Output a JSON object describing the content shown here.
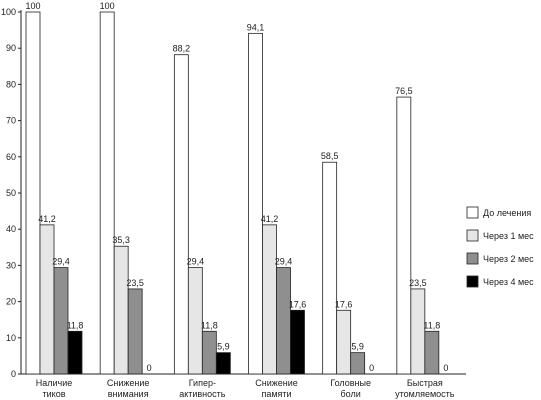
{
  "chart_data": {
    "type": "bar",
    "title": "",
    "xlabel": "",
    "ylabel": "",
    "ylim": [
      0,
      100
    ],
    "yticks": [
      0,
      10,
      20,
      30,
      40,
      50,
      60,
      70,
      80,
      90,
      100
    ],
    "grid": false,
    "legend_position": "right",
    "categories": [
      [
        "Наличие",
        "тиков"
      ],
      [
        "Снижение",
        "внимания"
      ],
      [
        "Гипер-",
        "активность"
      ],
      [
        "Снижение",
        "памяти"
      ],
      [
        "Головные",
        "боли"
      ],
      [
        "Быстрая",
        "утомляемость"
      ]
    ],
    "series": [
      {
        "name": "До лечения",
        "color": "#ffffff",
        "values": [
          100,
          100,
          88.2,
          94.1,
          58.5,
          76.5
        ],
        "labels": [
          "100",
          "100",
          "88,2",
          "94,1",
          "58,5",
          "76,5"
        ]
      },
      {
        "name": "Через 1 мес",
        "color": "#e6e6e6",
        "values": [
          41.2,
          35.3,
          29.4,
          41.2,
          17.6,
          23.5
        ],
        "labels": [
          "41,2",
          "35,3",
          "29,4",
          "41,2",
          "17,6",
          "23,5"
        ]
      },
      {
        "name": "Через 2 мес",
        "color": "#8f8f8f",
        "values": [
          29.4,
          23.5,
          11.8,
          29.4,
          5.9,
          11.8
        ],
        "labels": [
          "29,4",
          "23,5",
          "11,8",
          "29,4",
          "5,9",
          "11,8"
        ]
      },
      {
        "name": "Через 4 мес",
        "color": "#000000",
        "values": [
          11.8,
          0,
          5.9,
          17.6,
          0,
          0
        ],
        "labels": [
          "11,8",
          "0",
          "5,9",
          "17,6",
          "0",
          "0"
        ]
      }
    ]
  }
}
